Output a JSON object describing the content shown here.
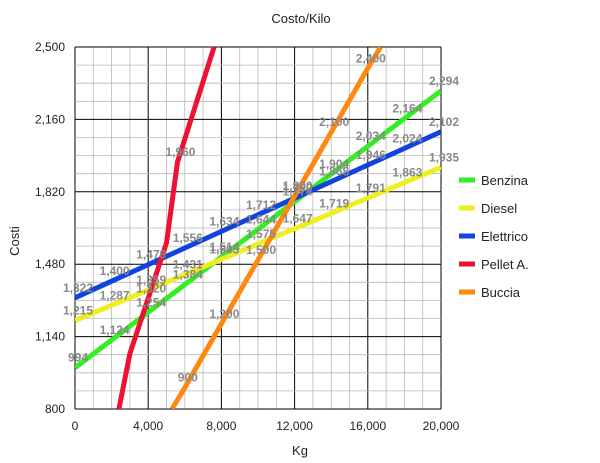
{
  "chart_data": {
    "type": "line",
    "title": "Costo/Kilo",
    "xlabel": "Kg",
    "ylabel": "Costi",
    "xlim": [
      0,
      20000
    ],
    "ylim": [
      800,
      2500
    ],
    "x_ticks": [
      "0",
      "4,000",
      "8,000",
      "12,000",
      "16,000",
      "20,000"
    ],
    "y_ticks": [
      "800",
      "1,140",
      "1,480",
      "1,820",
      "2,160",
      "2,500"
    ],
    "grid": true,
    "legend_position": "right",
    "series": [
      {
        "name": "Benzina",
        "color": "#33ee22",
        "points": [
          [
            0,
            994
          ],
          [
            2000,
            1124
          ],
          [
            4000,
            1254
          ],
          [
            6000,
            1384
          ],
          [
            8000,
            1514
          ],
          [
            10000,
            1644
          ],
          [
            12000,
            1774
          ],
          [
            14000,
            1904
          ],
          [
            16000,
            2034
          ],
          [
            18000,
            2164
          ],
          [
            20000,
            2294
          ]
        ],
        "labels": [
          "994",
          "1,124",
          "1,254",
          "1,384",
          "1,514",
          "1,644",
          "1,774",
          "1,904",
          "2,034",
          "2,164",
          "2,294"
        ]
      },
      {
        "name": "Diesel",
        "color": "#eeee22",
        "points": [
          [
            0,
            1215
          ],
          [
            2000,
            1287
          ],
          [
            4000,
            1359
          ],
          [
            6000,
            1431
          ],
          [
            8000,
            1503
          ],
          [
            10000,
            1575
          ],
          [
            12000,
            1647
          ],
          [
            14000,
            1719
          ],
          [
            16000,
            1791
          ],
          [
            18000,
            1863
          ],
          [
            20000,
            1935
          ]
        ],
        "labels": [
          "1,215",
          "1,287",
          "1,359",
          "1,431",
          "1,503",
          "1,575",
          "1,647",
          "1,719",
          "1,791",
          "1,863",
          "1,935"
        ]
      },
      {
        "name": "Elettrico",
        "color": "#1144dd",
        "points": [
          [
            0,
            1322
          ],
          [
            2000,
            1400
          ],
          [
            4000,
            1478
          ],
          [
            6000,
            1556
          ],
          [
            8000,
            1634
          ],
          [
            10000,
            1712
          ],
          [
            12000,
            1790
          ],
          [
            14000,
            1868
          ],
          [
            16000,
            1946
          ],
          [
            18000,
            2024
          ],
          [
            20000,
            2102
          ]
        ],
        "labels": [
          "1,322",
          "1,400",
          "1,478",
          "1,556",
          "1,634",
          "1,712",
          "1,790",
          "1,868",
          "1,946",
          "2,024",
          "2,102"
        ]
      },
      {
        "name": "Pellet A.",
        "color": "#ee1133",
        "points": [
          [
            2400,
            800
          ],
          [
            3000,
            1060
          ],
          [
            4000,
            1320
          ],
          [
            5000,
            1580
          ],
          [
            5600,
            1960
          ],
          [
            7600,
            2500
          ]
        ],
        "labels": [
          "",
          "",
          "1,320",
          "",
          "1,960",
          ""
        ]
      },
      {
        "name": "Buccia",
        "color": "#ff8811",
        "points": [
          [
            5300,
            800
          ],
          [
            6000,
            900
          ],
          [
            8000,
            1200
          ],
          [
            10000,
            1500
          ],
          [
            12000,
            1800
          ],
          [
            14000,
            2100
          ],
          [
            16000,
            2400
          ],
          [
            16700,
            2500
          ]
        ],
        "labels": [
          "",
          "900",
          "1,200",
          "1,500",
          "1,800",
          "2,100",
          "2,400",
          ""
        ]
      }
    ]
  }
}
